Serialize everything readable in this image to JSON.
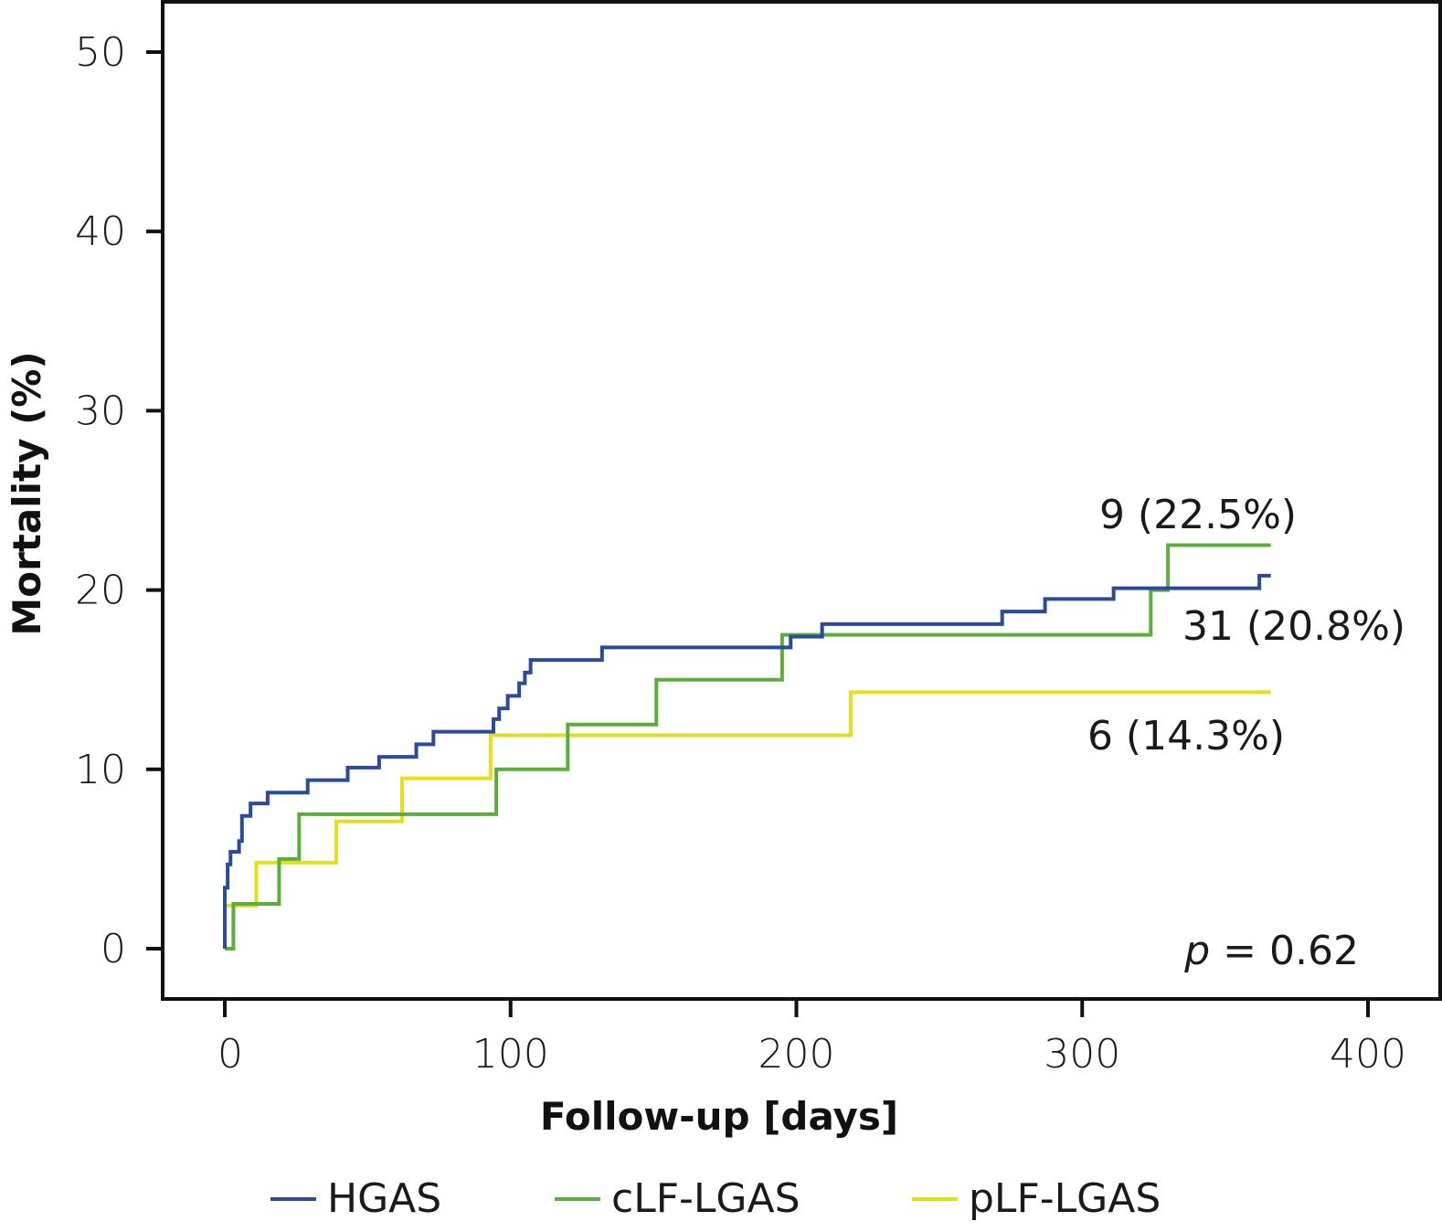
{
  "chart_data": {
    "type": "line",
    "step": true,
    "title": "",
    "xlabel": "Follow-up [days]",
    "ylabel": "Mortality (%)",
    "xlim": [
      -20,
      420
    ],
    "ylim": [
      -7,
      52
    ],
    "x_ticks": [
      0,
      100,
      200,
      300,
      400
    ],
    "x_tick_labels": [
      "0",
      "100",
      "200",
      "300",
      "400"
    ],
    "y_ticks": [
      0,
      10,
      20,
      30,
      40,
      50
    ],
    "y_tick_labels": [
      "0",
      "10",
      "20",
      "30",
      "40",
      "50"
    ],
    "grid": false,
    "legend_position": "bottom",
    "series": [
      {
        "name": "HGAS",
        "color": "#2b4a9b",
        "points": [
          [
            0,
            0
          ],
          [
            0,
            2.7
          ],
          [
            0,
            3.4
          ],
          [
            1,
            4.7
          ],
          [
            2,
            5.4
          ],
          [
            5,
            6.0
          ],
          [
            6,
            7.4
          ],
          [
            9,
            8.1
          ],
          [
            15,
            8.7
          ],
          [
            29,
            9.4
          ],
          [
            43,
            10.1
          ],
          [
            54,
            10.7
          ],
          [
            67,
            11.4
          ],
          [
            73,
            12.1
          ],
          [
            94,
            12.8
          ],
          [
            96,
            13.4
          ],
          [
            99,
            14.1
          ],
          [
            103,
            14.8
          ],
          [
            105,
            15.4
          ],
          [
            107,
            16.1
          ],
          [
            132,
            16.8
          ],
          [
            198,
            17.4
          ],
          [
            209,
            18.1
          ],
          [
            272,
            18.8
          ],
          [
            287,
            19.5
          ],
          [
            311,
            20.1
          ],
          [
            362,
            20.8
          ],
          [
            366,
            20.8
          ]
        ],
        "end_label": "31 (20.8%)"
      },
      {
        "name": "cLF-LGAS",
        "color": "#5aaf3c",
        "points": [
          [
            0,
            0
          ],
          [
            3,
            0
          ],
          [
            3,
            2.5
          ],
          [
            19,
            5.0
          ],
          [
            26,
            7.5
          ],
          [
            95,
            10.0
          ],
          [
            120,
            12.5
          ],
          [
            151,
            15.0
          ],
          [
            195,
            17.5
          ],
          [
            324,
            20.0
          ],
          [
            330,
            22.5
          ],
          [
            366,
            22.5
          ]
        ],
        "end_label": "9 (22.5%)"
      },
      {
        "name": "pLF-LGAS",
        "color": "#e6de1a",
        "points": [
          [
            0,
            0
          ],
          [
            0,
            2.4
          ],
          [
            11,
            4.8
          ],
          [
            39,
            7.1
          ],
          [
            62,
            9.5
          ],
          [
            93,
            11.9
          ],
          [
            219,
            14.3
          ],
          [
            366,
            14.3
          ]
        ],
        "end_label": "6 (14.3%)"
      }
    ],
    "annotations": [
      {
        "text": "9 (22.5%)",
        "series": "cLF-LGAS",
        "x": 330,
        "y": 24.5
      },
      {
        "text": "31 (20.8%)",
        "series": "HGAS",
        "x": 337,
        "y": 18.2
      },
      {
        "text": "6 (14.3%)",
        "series": "pLF-LGAS",
        "x": 330,
        "y": 11.8
      },
      {
        "text": "p = 0.62",
        "x": 350,
        "y": 0
      }
    ],
    "p_value": {
      "italic_prefix": "p",
      "rest": " = 0.62"
    }
  }
}
